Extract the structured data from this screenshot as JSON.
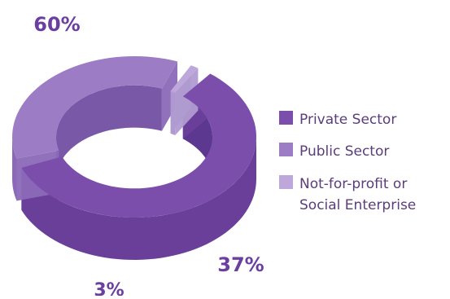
{
  "chart_data": {
    "type": "pie",
    "style": "3d-donut",
    "categories": [
      "Private Sector",
      "Public Sector",
      "Not-for-profit or Social Enterprise"
    ],
    "values": [
      60,
      37,
      3
    ],
    "data_labels": [
      "60%",
      "37%",
      "3%"
    ],
    "legend": {
      "placement": "right",
      "lines": [
        [
          "Private Sector"
        ],
        [
          "Public Sector"
        ],
        [
          "Not-for-profit or",
          "Social Enterprise"
        ]
      ]
    },
    "colors": {
      "private_top": "#7b4eac",
      "private_side": "#6a3f9a",
      "private_inner": "#5d3890",
      "public_top": "#9d7cc6",
      "public_side": "#8c69b8",
      "public_inner": "#7a58a8",
      "nfp_top": "#bea7db",
      "nfp_side": "#b09bd0",
      "label_color": "#6b3fa0",
      "legend_text": "#5a3d7a"
    }
  }
}
